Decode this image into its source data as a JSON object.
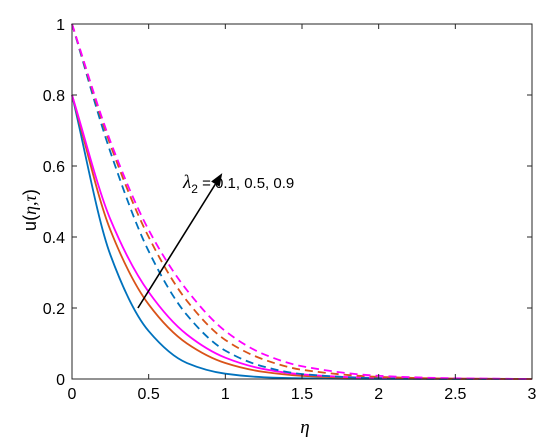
{
  "chart_data": {
    "type": "line",
    "title": "",
    "xlabel": "η",
    "ylabel_prefix": "u(",
    "ylabel_vars": "η,τ",
    "ylabel_suffix": ")",
    "xlim": [
      0,
      3
    ],
    "ylim": [
      0,
      1
    ],
    "xticks": [
      0,
      0.5,
      1,
      1.5,
      2,
      2.5,
      3
    ],
    "xtick_labels": [
      "0",
      "0.5",
      "1",
      "1.5",
      "2",
      "2.5",
      "3"
    ],
    "yticks": [
      0,
      0.2,
      0.4,
      0.6,
      0.8,
      1
    ],
    "ytick_labels": [
      "0",
      "0.2",
      "0.4",
      "0.6",
      "0.8",
      "1"
    ],
    "grid": false,
    "annotation": {
      "symbol": "λ",
      "subscript": "2",
      "text": " = 0.1, 0.5, 0.9",
      "arrow_from": [
        0.43,
        0.2
      ],
      "arrow_to": [
        0.98,
        0.58
      ]
    },
    "series": [
      {
        "style": "solid",
        "color": "#0072BD",
        "x": [
          0,
          0.25,
          0.5,
          0.75,
          1.0,
          1.25,
          1.5,
          2.0,
          2.5,
          3.0
        ],
        "y": [
          0.8,
          0.35,
          0.135,
          0.045,
          0.015,
          0.005,
          0.002,
          0.0,
          0.0,
          0.0
        ]
      },
      {
        "style": "solid",
        "color": "#D95319",
        "x": [
          0,
          0.25,
          0.5,
          0.75,
          1.0,
          1.25,
          1.5,
          2.0,
          2.5,
          3.0
        ],
        "y": [
          0.8,
          0.42,
          0.21,
          0.1,
          0.045,
          0.02,
          0.009,
          0.002,
          0.0,
          0.0
        ]
      },
      {
        "style": "solid",
        "color": "#FF00FF",
        "x": [
          0,
          0.25,
          0.5,
          0.75,
          1.0,
          1.25,
          1.5,
          2.0,
          2.5,
          3.0
        ],
        "y": [
          0.8,
          0.45,
          0.245,
          0.125,
          0.06,
          0.028,
          0.013,
          0.003,
          0.001,
          0.0
        ]
      },
      {
        "style": "dashed",
        "color": "#0072BD",
        "x": [
          0,
          0.25,
          0.5,
          0.75,
          1.0,
          1.25,
          1.5,
          2.0,
          2.5,
          3.0
        ],
        "y": [
          1.0,
          0.64,
          0.36,
          0.18,
          0.08,
          0.035,
          0.014,
          0.002,
          0.0,
          0.0
        ]
      },
      {
        "style": "dashed",
        "color": "#D95319",
        "x": [
          0,
          0.25,
          0.5,
          0.75,
          1.0,
          1.25,
          1.5,
          2.0,
          2.5,
          3.0
        ],
        "y": [
          1.0,
          0.66,
          0.4,
          0.22,
          0.11,
          0.055,
          0.026,
          0.006,
          0.001,
          0.0
        ]
      },
      {
        "style": "dashed",
        "color": "#FF00FF",
        "x": [
          0,
          0.25,
          0.5,
          0.75,
          1.0,
          1.25,
          1.5,
          2.0,
          2.5,
          3.0
        ],
        "y": [
          1.0,
          0.67,
          0.42,
          0.25,
          0.135,
          0.07,
          0.036,
          0.009,
          0.002,
          0.0
        ]
      }
    ]
  }
}
